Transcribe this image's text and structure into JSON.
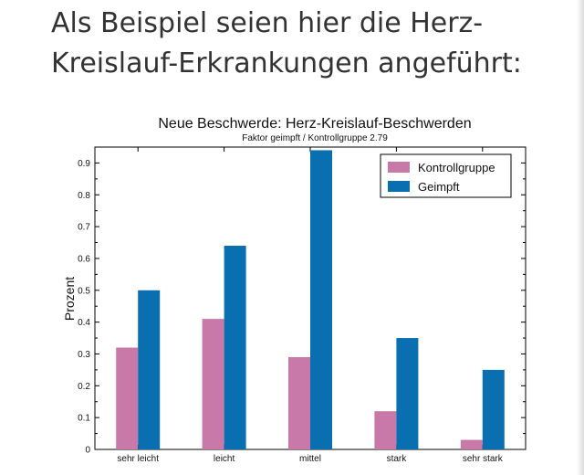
{
  "heading": "Als Beispiel seien hier die Herz-Kreislauf-Erkrankungen angeführt:",
  "chart_data": {
    "type": "bar",
    "title": "Neue Beschwerde: Herz-Kreislauf-Beschwerden",
    "subtitle": "Faktor geimpft / Kontrollgruppe 2.79",
    "ylabel": "Prozent",
    "xlabel": "",
    "categories": [
      "sehr leicht",
      "leicht",
      "mittel",
      "stark",
      "sehr stark"
    ],
    "series": [
      {
        "name": "Kontrollgruppe",
        "color": "#c979a8",
        "values": [
          0.32,
          0.41,
          0.29,
          0.12,
          0.03
        ]
      },
      {
        "name": "Geimpft",
        "color": "#0a6fb0",
        "values": [
          0.5,
          0.64,
          0.94,
          0.35,
          0.25
        ]
      }
    ],
    "ylim": [
      0,
      0.95
    ],
    "yticks": [
      0,
      0.1,
      0.2,
      0.3,
      0.4,
      0.5,
      0.6,
      0.7,
      0.8,
      0.9
    ],
    "ytick_labels": [
      "0",
      "0.1",
      "0.2",
      "0.3",
      "0.4",
      "0.5",
      "0.6",
      "0.7",
      "0.8",
      "0.9"
    ],
    "grid": false,
    "legend": "top-right"
  }
}
